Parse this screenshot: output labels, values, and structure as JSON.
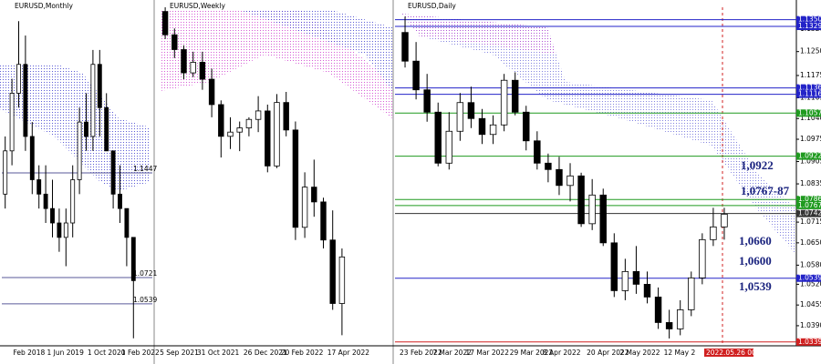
{
  "chart_data": [
    {
      "type": "candlestick",
      "title": "EURUSD,Monthly",
      "categories": [
        null,
        null,
        "Feb 2018",
        null,
        null,
        null,
        null,
        "1 Jun 2019",
        null,
        null,
        null,
        null,
        null,
        "1 Oct 2020",
        null,
        null,
        null,
        null,
        "1 Feb 2022",
        null
      ],
      "open": [
        1.13,
        1.16,
        1.2,
        1.22,
        1.17,
        1.14,
        1.13,
        1.12,
        1.11,
        1.1,
        1.11,
        1.14,
        1.18,
        1.17,
        1.22,
        1.19,
        1.16,
        1.13,
        1.12,
        1.1
      ],
      "high": [
        1.17,
        1.21,
        1.25,
        1.24,
        1.18,
        1.15,
        1.15,
        1.14,
        1.12,
        1.12,
        1.15,
        1.19,
        1.2,
        1.23,
        1.23,
        1.2,
        1.16,
        1.15,
        1.12,
        1.1
      ],
      "low": [
        1.12,
        1.15,
        1.19,
        1.16,
        1.13,
        1.12,
        1.11,
        1.1,
        1.09,
        1.08,
        1.1,
        1.13,
        1.16,
        1.16,
        1.17,
        1.16,
        1.12,
        1.11,
        1.08,
        1.03
      ],
      "close": [
        1.16,
        1.2,
        1.22,
        1.17,
        1.14,
        1.13,
        1.12,
        1.11,
        1.1,
        1.11,
        1.14,
        1.18,
        1.17,
        1.22,
        1.19,
        1.16,
        1.13,
        1.12,
        1.1,
        1.07
      ],
      "ylim": [
        1.0248,
        1.2596
      ],
      "levels": [
        {
          "value": 1.1447,
          "label": "1.1447",
          "color": "#5a5a9a"
        },
        {
          "value": 1.0721,
          "label": "1.0721",
          "color": "#5a5a9a"
        },
        {
          "value": 1.0539,
          "label": "1.0539",
          "color": "#5a5a9a"
        }
      ]
    },
    {
      "type": "candlestick",
      "title": "EURUSD,Weekly",
      "categories": [
        "5 Sep 2021",
        null,
        null,
        null,
        "31 Oct 2021",
        null,
        null,
        null,
        null,
        "26 Dec 2021",
        null,
        null,
        null,
        "20 Feb 2022",
        null,
        null,
        null,
        null,
        "17 Apr 2022",
        null
      ],
      "open": [
        1.188,
        1.177,
        1.17,
        1.159,
        1.164,
        1.156,
        1.144,
        1.129,
        1.131,
        1.133,
        1.137,
        1.141,
        1.115,
        1.145,
        1.132,
        1.086,
        1.105,
        1.098,
        1.08,
        1.05
      ],
      "high": [
        1.19,
        1.18,
        1.172,
        1.169,
        1.169,
        1.161,
        1.146,
        1.138,
        1.136,
        1.138,
        1.148,
        1.144,
        1.149,
        1.15,
        1.136,
        1.112,
        1.118,
        1.1,
        1.094,
        1.076
      ],
      "low": [
        1.175,
        1.166,
        1.156,
        1.157,
        1.151,
        1.138,
        1.119,
        1.123,
        1.122,
        1.129,
        1.131,
        1.112,
        1.114,
        1.129,
        1.08,
        1.081,
        1.091,
        1.076,
        1.047,
        1.035
      ],
      "close": [
        1.177,
        1.17,
        1.159,
        1.164,
        1.156,
        1.144,
        1.129,
        1.131,
        1.133,
        1.137,
        1.141,
        1.115,
        1.145,
        1.132,
        1.086,
        1.105,
        1.098,
        1.08,
        1.05,
        1.072
      ],
      "ylim": [
        1.03,
        1.19
      ]
    },
    {
      "type": "candlestick",
      "title": "EURUSD,Daily",
      "categories": [
        "23 Feb 2022",
        null,
        null,
        "7 Mar 2022",
        null,
        null,
        "17 Mar 2022",
        null,
        null,
        null,
        "29 Mar 2022",
        null,
        null,
        "8 Apr 2022",
        null,
        null,
        null,
        "20 Apr 2022",
        null,
        null,
        "2 May 2022",
        null,
        null,
        null,
        "12 May 2",
        null,
        null,
        null,
        null,
        "2022.05.26 00:00"
      ],
      "open": [
        1.131,
        1.122,
        1.113,
        1.106,
        1.09,
        1.1,
        1.109,
        1.104,
        1.099,
        1.102,
        1.116,
        1.106,
        1.097,
        1.09,
        1.088,
        1.083,
        1.086,
        1.071,
        1.08,
        1.065,
        1.05,
        1.056,
        1.052,
        1.048,
        1.04,
        1.038,
        1.044,
        1.054,
        1.066,
        1.07
      ],
      "high": [
        1.136,
        1.128,
        1.118,
        1.109,
        1.106,
        1.112,
        1.114,
        1.107,
        1.105,
        1.118,
        1.1185,
        1.108,
        1.1,
        1.093,
        1.092,
        1.09,
        1.087,
        1.085,
        1.082,
        1.068,
        1.06,
        1.064,
        1.056,
        1.051,
        1.044,
        1.047,
        1.056,
        1.068,
        1.076,
        1.076
      ],
      "low": [
        1.12,
        1.11,
        1.103,
        1.089,
        1.088,
        1.097,
        1.101,
        1.096,
        1.096,
        1.1,
        1.105,
        1.094,
        1.088,
        1.084,
        1.08,
        1.078,
        1.07,
        1.069,
        1.064,
        1.048,
        1.047,
        1.049,
        1.046,
        1.038,
        1.035,
        1.036,
        1.042,
        1.052,
        1.064,
        1.066
      ],
      "close": [
        1.122,
        1.113,
        1.106,
        1.09,
        1.1,
        1.109,
        1.104,
        1.099,
        1.102,
        1.116,
        1.106,
        1.097,
        1.09,
        1.088,
        1.083,
        1.086,
        1.071,
        1.08,
        1.065,
        1.05,
        1.056,
        1.052,
        1.048,
        1.04,
        1.038,
        1.044,
        1.054,
        1.066,
        1.07,
        1.074
      ],
      "ylim": [
        1.0327,
        1.1389
      ],
      "yticks": [
        {
          "value": 1.132,
          "label": "1.1320"
        },
        {
          "value": 1.125,
          "label": "1.1250"
        },
        1.1175,
        1.1105,
        {
          "value": 1.104,
          "label": "1.1040"
        },
        1.0975,
        1.0905,
        1.0835,
        1.0715,
        {
          "value": 1.065,
          "label": "1.0650"
        },
        {
          "value": 1.058,
          "label": "1.0580"
        },
        {
          "value": 1.052,
          "label": "1.0520"
        },
        1.0455,
        {
          "value": 1.039,
          "label": "1.0390"
        }
      ],
      "levels": [
        {
          "value": 1.135,
          "label": "1.1350",
          "color": "#2323c8"
        },
        {
          "value": 1.1329,
          "label": "1.1329",
          "color": "#2323c8"
        },
        {
          "value": 1.1136,
          "label": "1.1136",
          "color": "#2323c8"
        },
        {
          "value": 1.1116,
          "label": "1.1116",
          "color": "#2323c8"
        },
        {
          "value": 1.1057,
          "label": "1.1057",
          "color": "#1f9a1f"
        },
        {
          "value": 1.0922,
          "label": "1.0922",
          "color": "#1f9a1f"
        },
        {
          "value": 1.0786,
          "label": "1.0786",
          "color": "#1f9a1f"
        },
        {
          "value": 1.0767,
          "label": "1.0767",
          "color": "#1f9a1f"
        },
        {
          "value": 1.0742,
          "label": "1.0742",
          "color": "#333333"
        },
        {
          "value": 1.0539,
          "label": "1.0539",
          "color": "#2323c8"
        },
        {
          "value": 1.0339,
          "label": "1.0339",
          "color": "#d02020"
        }
      ],
      "annotations": [
        "1,0922",
        "1,0767-87",
        "1,0660",
        "1,0600",
        "1,0539"
      ]
    }
  ]
}
